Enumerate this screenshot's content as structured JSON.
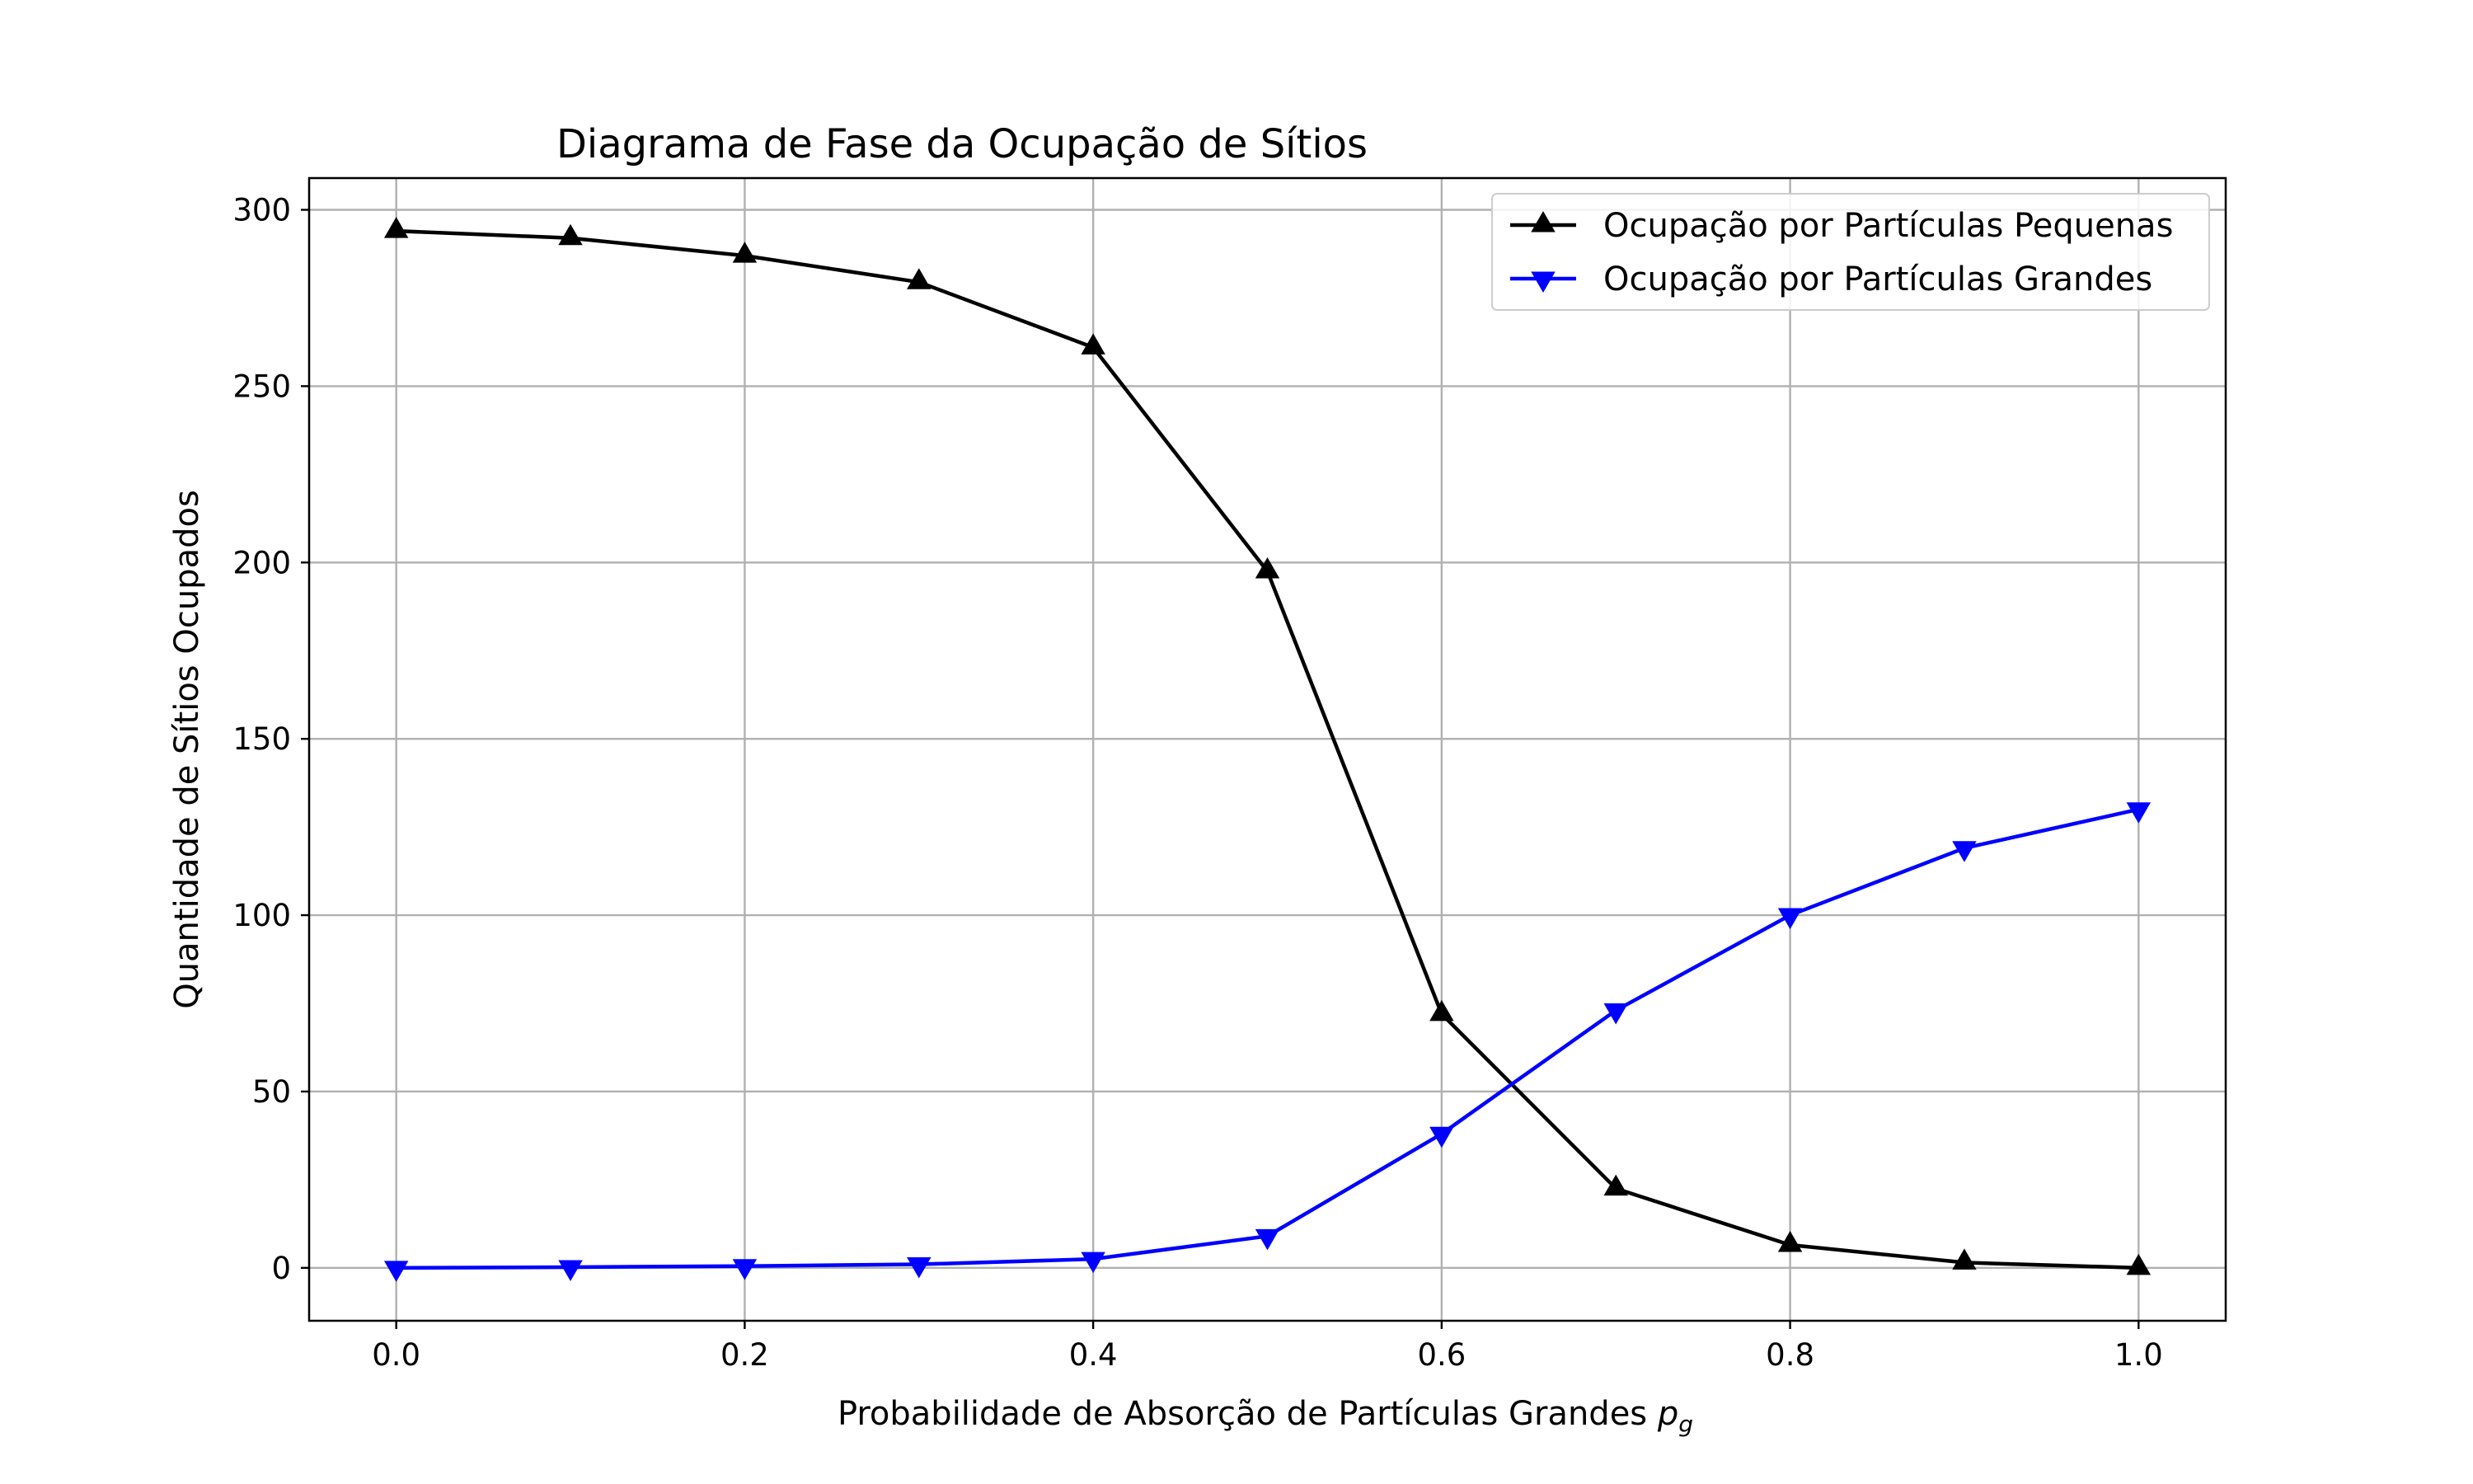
{
  "chart_data": {
    "type": "line",
    "title": "Diagrama de Fase da Ocupação de Sítios",
    "xlabel": "Probabilidade de Absorção de Partículas Grandes",
    "xlabel_symbol": "p",
    "xlabel_subscript": "g",
    "ylabel": "Quantidade de Sítios Ocupados",
    "xlim": [
      -0.05,
      1.05
    ],
    "ylim": [
      -15,
      309
    ],
    "xticks": [
      "0.0",
      "0.2",
      "0.4",
      "0.6",
      "0.8",
      "1.0"
    ],
    "yticks": [
      "0",
      "50",
      "100",
      "150",
      "200",
      "250",
      "300"
    ],
    "grid": true,
    "legend_position": "top-right",
    "x": [
      0.0,
      0.1,
      0.2,
      0.3,
      0.4,
      0.5,
      0.6,
      0.7,
      0.8,
      0.9,
      1.0
    ],
    "series": [
      {
        "name": "Ocupação por Partículas Pequenas",
        "color": "#000000",
        "marker": "triangle-up",
        "values": [
          294,
          292,
          287,
          279.5,
          261,
          197.5,
          72,
          22.5,
          6.5,
          1.5,
          0
        ]
      },
      {
        "name": "Ocupação por Partículas Grandes",
        "color": "#0000ff",
        "marker": "triangle-down",
        "values": [
          0,
          0.2,
          0.5,
          1,
          2.5,
          9,
          38,
          73,
          100,
          119,
          130
        ]
      }
    ]
  }
}
